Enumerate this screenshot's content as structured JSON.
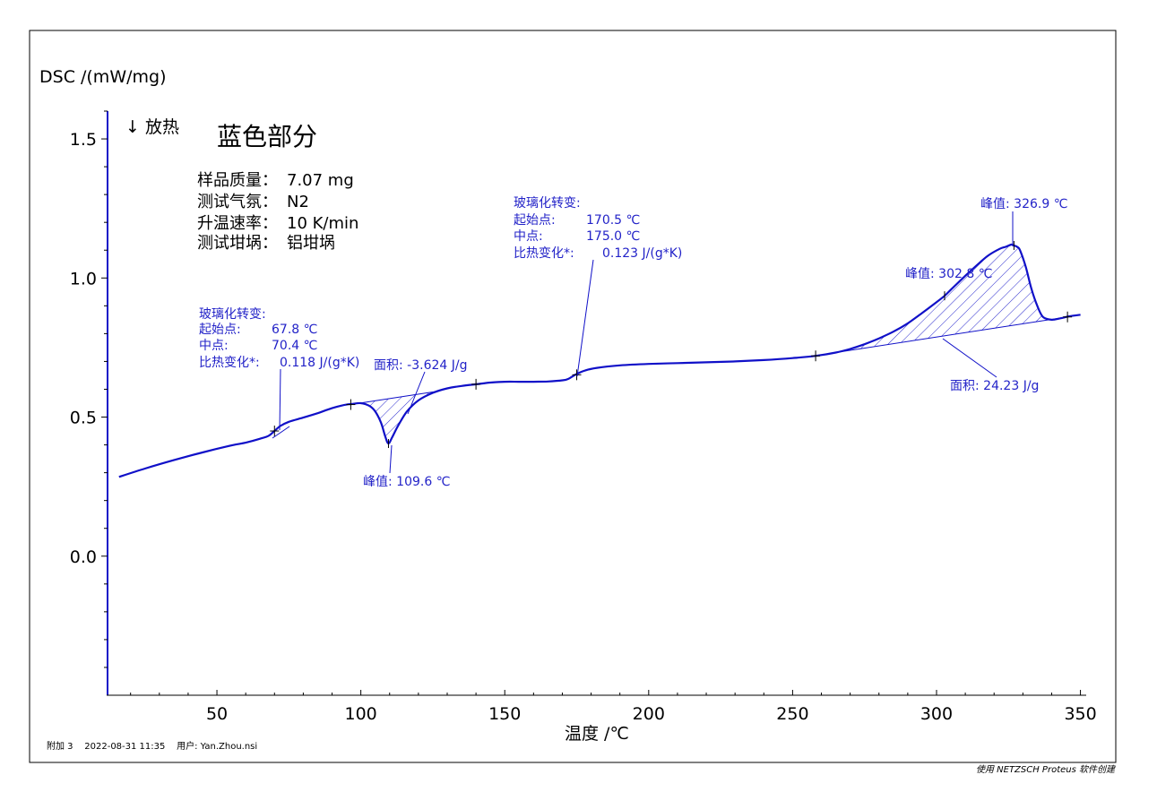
{
  "chart_data": {
    "type": "line",
    "ylabel": "DSC /(mW/mg)",
    "xlabel": "温度 /℃",
    "exo_label": "↓ 放热",
    "title": "蓝色部分",
    "xlim": [
      12,
      352
    ],
    "ylim": [
      -0.5,
      1.6
    ],
    "x_ticks": [
      50,
      100,
      150,
      200,
      250,
      300,
      350
    ],
    "y_ticks": [
      0.0,
      0.5,
      1.0,
      1.5
    ],
    "y_tick_labels": [
      "0.0",
      "0.5",
      "1.0",
      "1.5"
    ],
    "x_tick_labels": [
      "50",
      "100",
      "150",
      "200",
      "250",
      "300",
      "350"
    ],
    "series": [
      {
        "color": "#1010c8",
        "x": [
          16,
          25,
          35,
          45,
          55,
          60,
          65,
          68,
          70,
          72,
          75,
          80,
          85,
          90,
          95,
          97,
          100,
          103,
          105,
          107,
          108.5,
          109.6,
          111,
          113,
          116,
          120,
          125,
          130,
          135,
          140,
          145,
          150,
          155,
          160,
          165,
          170,
          172,
          175,
          178,
          182,
          190,
          200,
          210,
          220,
          230,
          240,
          250,
          258,
          265,
          270,
          275,
          280,
          285,
          290,
          295,
          300,
          302.8,
          305,
          310,
          315,
          318,
          322,
          324,
          326,
          326.9,
          328,
          329,
          331,
          333,
          335,
          337,
          340,
          343,
          346,
          350
        ],
        "y": [
          0.285,
          0.315,
          0.345,
          0.373,
          0.398,
          0.408,
          0.422,
          0.433,
          0.45,
          0.468,
          0.483,
          0.498,
          0.514,
          0.532,
          0.545,
          0.547,
          0.55,
          0.54,
          0.52,
          0.48,
          0.43,
          0.405,
          0.43,
          0.47,
          0.52,
          0.56,
          0.587,
          0.603,
          0.612,
          0.618,
          0.624,
          0.627,
          0.627,
          0.627,
          0.628,
          0.632,
          0.637,
          0.655,
          0.668,
          0.677,
          0.686,
          0.691,
          0.694,
          0.697,
          0.7,
          0.705,
          0.712,
          0.72,
          0.732,
          0.745,
          0.762,
          0.783,
          0.807,
          0.837,
          0.874,
          0.913,
          0.936,
          0.958,
          1.008,
          1.055,
          1.081,
          1.105,
          1.112,
          1.12,
          1.117,
          1.112,
          1.1,
          1.04,
          0.96,
          0.9,
          0.86,
          0.85,
          0.855,
          0.862,
          0.868
        ]
      }
    ],
    "tick_marks": [
      [
        70,
        0.45
      ],
      [
        96.5,
        0.545
      ],
      [
        140,
        0.618
      ],
      [
        175,
        0.652
      ],
      [
        258,
        0.72
      ],
      [
        345.5,
        0.86
      ]
    ],
    "baseline_peak1": [
      [
        97,
        0.546
      ],
      [
        126,
        0.592
      ]
    ],
    "baseline_peak2": [
      [
        265,
        0.732
      ],
      [
        345.5,
        0.86
      ]
    ],
    "annotations": {
      "sample_info": [
        {
          "label": "样品质量：",
          "value": "7.07 mg"
        },
        {
          "label": "测试气氛：",
          "value": "N2"
        },
        {
          "label": "升温速率：",
          "value": "10 K/min"
        },
        {
          "label": "测试坩埚：",
          "value": "铝坩埚"
        }
      ],
      "glass1": {
        "title": "玻璃化转变:",
        "rows": [
          {
            "label": "起始点:",
            "value": "67.8 ℃"
          },
          {
            "label": "中点:",
            "value": "70.4 ℃"
          },
          {
            "label": "比热变化*:",
            "value": "0.118 J/(g*K)"
          }
        ]
      },
      "glass2": {
        "title": "玻璃化转变:",
        "rows": [
          {
            "label": "起始点:",
            "value": "170.5 ℃"
          },
          {
            "label": "中点:",
            "value": "175.0 ℃"
          },
          {
            "label": "比热变化*:",
            "value": "0.123 J/(g*K)"
          }
        ]
      },
      "area1": "面积: -3.624 J/g",
      "peak1": "峰值: 109.6 ℃",
      "peak2": "峰值: 302.8 ℃",
      "peak3": "峰值: 326.9 ℃",
      "area2": "面积: 24.23 J/g"
    }
  },
  "footer": {
    "left": "附加 3    2022-08-31 11:35    用户: Yan.Zhou.nsi",
    "right": "使用 NETZSCH Proteus 软件创建"
  }
}
